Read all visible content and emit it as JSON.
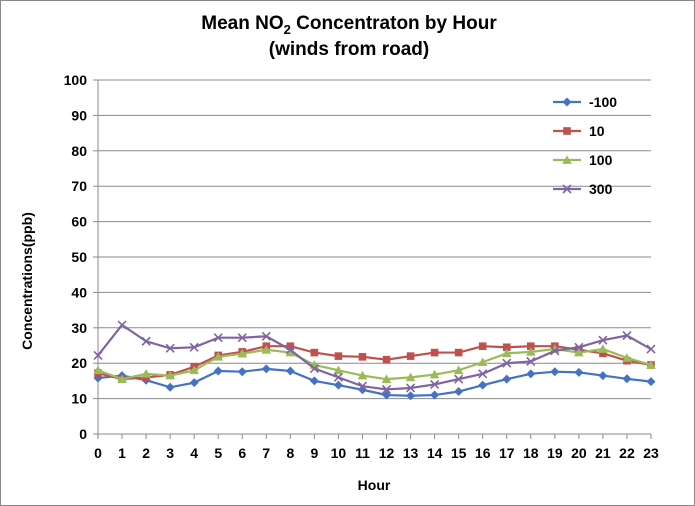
{
  "chart_data": {
    "type": "line",
    "title": "Mean NO",
    "title_subscript": "2",
    "title_rest": " Concentraton by Hour",
    "subtitle": "(winds from road)",
    "xlabel": "Hour",
    "ylabel": "Concentrations(ppb)",
    "ylim": [
      0,
      100
    ],
    "yticks": [
      0,
      10,
      20,
      30,
      40,
      50,
      60,
      70,
      80,
      90,
      100
    ],
    "grid": true,
    "legend_position": "top-right",
    "x": [
      0,
      1,
      2,
      3,
      4,
      5,
      6,
      7,
      8,
      9,
      10,
      11,
      12,
      13,
      14,
      15,
      16,
      17,
      18,
      19,
      20,
      21,
      22,
      23
    ],
    "series": [
      {
        "name": "-100",
        "color": "#4472C4",
        "marker": "diamond",
        "values": [
          15.8,
          16.5,
          15.2,
          13.2,
          14.5,
          17.8,
          17.6,
          18.4,
          17.8,
          15.0,
          13.8,
          12.5,
          11.0,
          10.8,
          11.0,
          12.0,
          13.8,
          15.5,
          17.0,
          17.6,
          17.4,
          16.5,
          15.6,
          14.8
        ]
      },
      {
        "name": "10",
        "color": "#C0504D",
        "marker": "square",
        "values": [
          17.2,
          15.5,
          16.0,
          16.7,
          19.0,
          22.2,
          23.2,
          24.8,
          24.8,
          23.0,
          22.0,
          21.8,
          21.0,
          22.0,
          23.0,
          23.0,
          24.8,
          24.5,
          24.8,
          24.8,
          23.8,
          22.8,
          20.7,
          19.5
        ]
      },
      {
        "name": "100",
        "color": "#9BBB59",
        "marker": "triangle",
        "values": [
          18.0,
          15.5,
          17.0,
          16.5,
          18.0,
          21.8,
          22.7,
          23.8,
          23.0,
          19.5,
          18.0,
          16.5,
          15.5,
          16.0,
          16.8,
          18.0,
          20.3,
          22.8,
          23.2,
          24.0,
          23.0,
          24.0,
          21.5,
          19.5
        ]
      },
      {
        "name": "300",
        "color": "#8064A2",
        "marker": "x",
        "values": [
          22.2,
          30.8,
          26.2,
          24.2,
          24.5,
          27.2,
          27.2,
          27.6,
          23.8,
          18.5,
          16.0,
          13.5,
          12.6,
          13.0,
          14.0,
          15.5,
          17.0,
          20.0,
          20.5,
          23.5,
          24.5,
          26.5,
          27.8,
          24.0
        ]
      }
    ]
  }
}
